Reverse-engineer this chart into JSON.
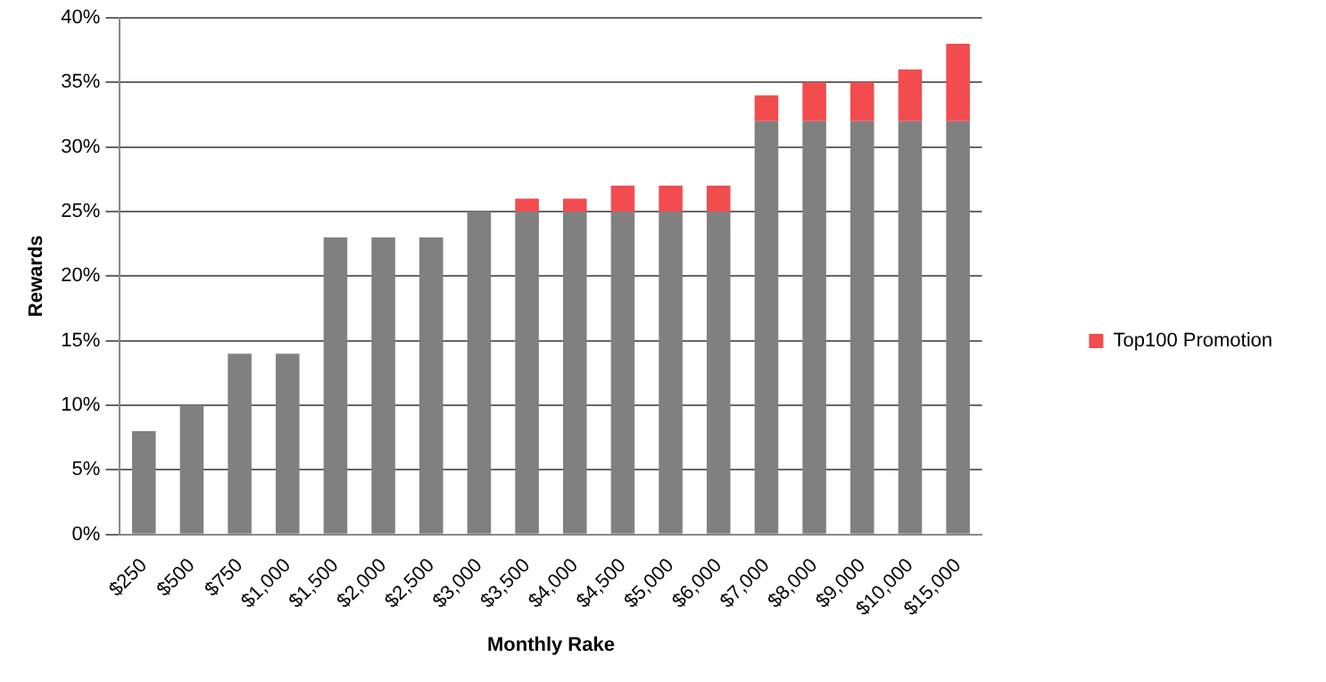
{
  "chart_data": {
    "type": "bar",
    "stacked": true,
    "xlabel": "Monthly Rake",
    "ylabel": "Rewards",
    "categories": [
      "$250",
      "$500",
      "$750",
      "$1,000",
      "$1,500",
      "$2,000",
      "$2,500",
      "$3,000",
      "$3,500",
      "$4,000",
      "$4,500",
      "$5,000",
      "$6,000",
      "$7,000",
      "$8,000",
      "$9,000",
      "$10,000",
      "$15,000"
    ],
    "series": [
      {
        "color": "#808080",
        "values": [
          8,
          10,
          14,
          14,
          23,
          23,
          23,
          25,
          25,
          25,
          25,
          25,
          25,
          32,
          32,
          32,
          32,
          32
        ]
      },
      {
        "name": "Top100 Promotion",
        "color": "#f24c4f",
        "values": [
          0,
          0,
          0,
          0,
          0,
          0,
          0,
          0,
          1,
          1,
          2,
          2,
          2,
          2,
          3,
          3,
          4,
          6
        ]
      }
    ],
    "ylim": [
      0,
      40
    ],
    "yticks": [
      {
        "value": 0,
        "label": "0%"
      },
      {
        "value": 5,
        "label": "5%"
      },
      {
        "value": 10,
        "label": "10%"
      },
      {
        "value": 15,
        "label": "15%"
      },
      {
        "value": 20,
        "label": "20%"
      },
      {
        "value": 25,
        "label": "25%"
      },
      {
        "value": 30,
        "label": "30%"
      },
      {
        "value": 35,
        "label": "35%"
      },
      {
        "value": 40,
        "label": "40%"
      }
    ],
    "grid": "y",
    "legend": "right"
  }
}
